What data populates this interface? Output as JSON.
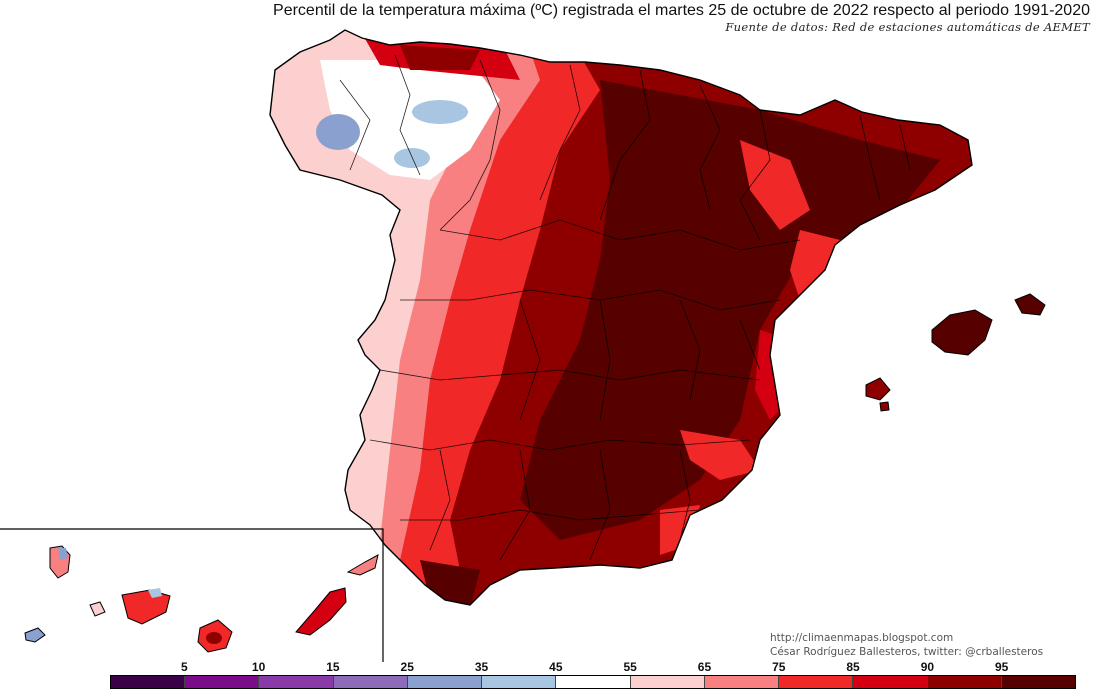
{
  "header": {
    "title": "Percentil de la temperatura máxima (ºC) registrada el martes 25 de octubre de 2022 respecto al periodo 1991-2020",
    "source": "Fuente de datos: Red de estaciones automáticas de AEMET"
  },
  "credits": {
    "url": "http://climaenmapas.blogspot.com",
    "author": "César Rodríguez Ballesteros, twitter: @crballesteros"
  },
  "legend": {
    "labels": [
      "5",
      "10",
      "15",
      "25",
      "35",
      "45",
      "55",
      "65",
      "75",
      "85",
      "90",
      "95"
    ],
    "colors": [
      "#3a0048",
      "#7a0c8a",
      "#8a3aa8",
      "#8c6bb8",
      "#8aa0cf",
      "#a8c6e2",
      "#ffffff",
      "#fdd0d0",
      "#f88080",
      "#f02828",
      "#d40012",
      "#8e0000",
      "#560000"
    ]
  },
  "palette": {
    "border": "#000000",
    "sea": "#ffffff"
  }
}
